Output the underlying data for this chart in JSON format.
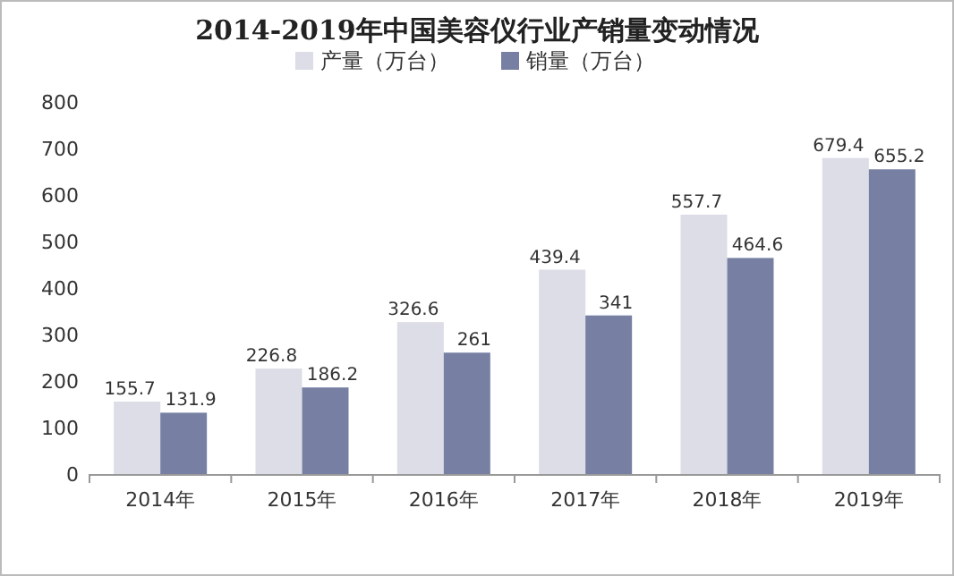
{
  "chart_data": {
    "type": "bar",
    "title": "2014-2019年中国美容仪行业产销量变动情况",
    "categories": [
      "2014年",
      "2015年",
      "2016年",
      "2017年",
      "2018年",
      "2019年"
    ],
    "series": [
      {
        "name": "产量（万台）",
        "color": "#dcdde6",
        "values": [
          155.7,
          226.8,
          326.6,
          439.4,
          557.7,
          679.4
        ]
      },
      {
        "name": "销量（万台）",
        "color": "#7780a3",
        "values": [
          131.9,
          186.2,
          261,
          341,
          464.6,
          655.2
        ]
      }
    ],
    "ylim": [
      0,
      800
    ],
    "yticks": [
      0,
      100,
      200,
      300,
      400,
      500,
      600,
      700,
      800
    ],
    "legend": "top",
    "data_labels": true,
    "grid": false
  }
}
